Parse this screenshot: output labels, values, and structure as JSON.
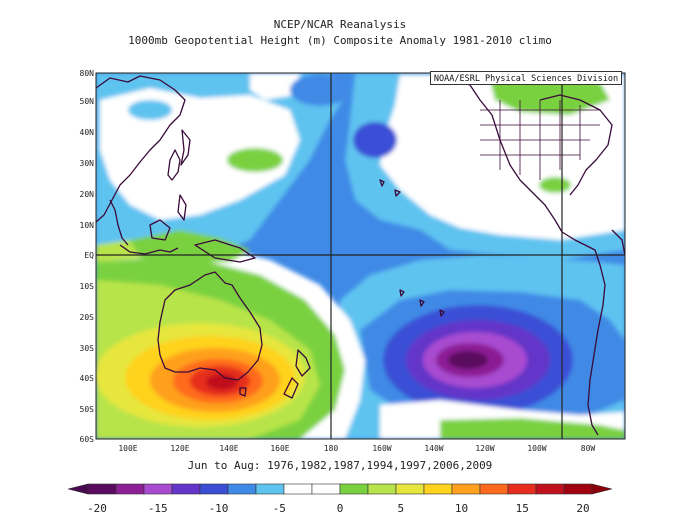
{
  "title": "NCEP/NCAR Reanalysis",
  "subtitle": "1000mb Geopotential Height (m) Composite Anomaly 1981-2010 climo",
  "credit": "NOAA/ESRL Physical Sciences Division",
  "date_range": "Jun to Aug: 1976,1982,1987,1994,1997,2006,2009",
  "map": {
    "lon_range": [
      90,
      295
    ],
    "lat_range": [
      -60,
      80
    ],
    "lat_labels": [
      "80N",
      "50N",
      "40N",
      "30N",
      "20N",
      "10N",
      "EQ",
      "10S",
      "20S",
      "30S",
      "40S",
      "50S",
      "60S"
    ],
    "lon_labels": [
      "100E",
      "120E",
      "140E",
      "160E",
      "180",
      "160W",
      "140W",
      "120W",
      "100W",
      "80W"
    ],
    "reference_lines": {
      "equator_lat": 0,
      "dateline_lon": 180,
      "lon_85w": 275
    }
  },
  "colorbar": {
    "tick_labels": [
      "-20",
      "-15",
      "-10",
      "-5",
      "0",
      "5",
      "10",
      "15",
      "20"
    ],
    "colors": [
      "#5a0a5f",
      "#8c1e96",
      "#a84bd1",
      "#6435c8",
      "#3a4fd6",
      "#3f8ae6",
      "#5fc3f0",
      "#ffffff",
      "#ffffff",
      "#7ad13f",
      "#b7e44a",
      "#e6e63c",
      "#ffd21e",
      "#ffa01e",
      "#ff6a1e",
      "#e62d1e",
      "#c0101e",
      "#a0000f"
    ]
  }
}
